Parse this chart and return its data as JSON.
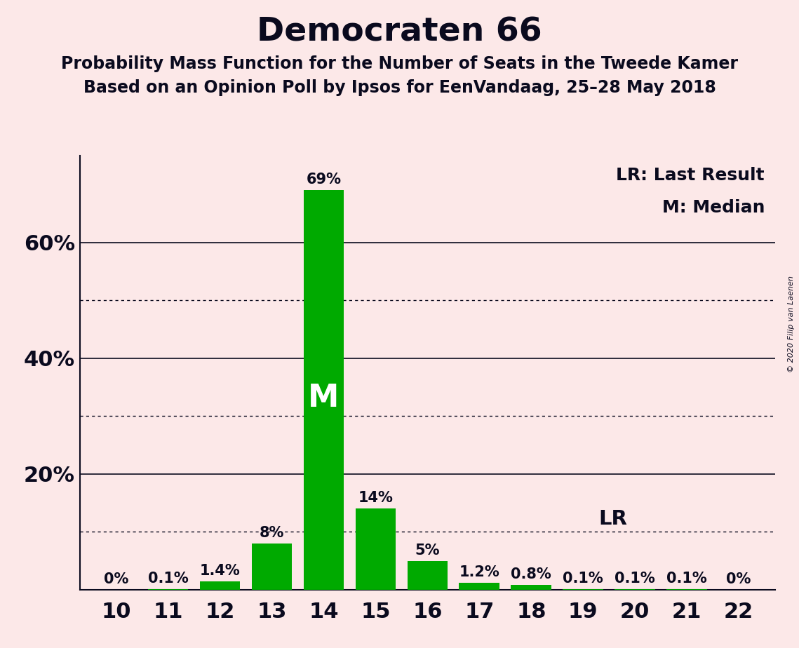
{
  "title": "Democraten 66",
  "subtitle1": "Probability Mass Function for the Number of Seats in the Tweede Kamer",
  "subtitle2": "Based on an Opinion Poll by Ipsos for EenVandaag, 25–28 May 2018",
  "copyright": "© 2020 Filip van Laenen",
  "seats": [
    10,
    11,
    12,
    13,
    14,
    15,
    16,
    17,
    18,
    19,
    20,
    21,
    22
  ],
  "probabilities": [
    0.0,
    0.1,
    1.4,
    8.0,
    69.0,
    14.0,
    5.0,
    1.2,
    0.8,
    0.1,
    0.1,
    0.1,
    0.0
  ],
  "labels": [
    "0%",
    "0.1%",
    "1.4%",
    "8%",
    "69%",
    "14%",
    "5%",
    "1.2%",
    "0.8%",
    "0.1%",
    "0.1%",
    "0.1%",
    "0%"
  ],
  "bar_color": "#00aa00",
  "background_color": "#fce8e8",
  "dotted_lines": [
    10,
    30,
    50
  ],
  "solid_lines": [
    20,
    40,
    60
  ],
  "median_seat": 14,
  "lr_seat": 19,
  "legend_lr": "LR: Last Result",
  "legend_m": "M: Median",
  "ylim": [
    0,
    75
  ],
  "text_color": "#0a0a1e",
  "title_fontsize": 34,
  "subtitle_fontsize": 17,
  "ytick_fontsize": 22,
  "xtick_fontsize": 22,
  "bar_label_fontsize": 15,
  "m_fontsize": 32,
  "lr_fontsize": 21,
  "legend_fontsize": 18
}
